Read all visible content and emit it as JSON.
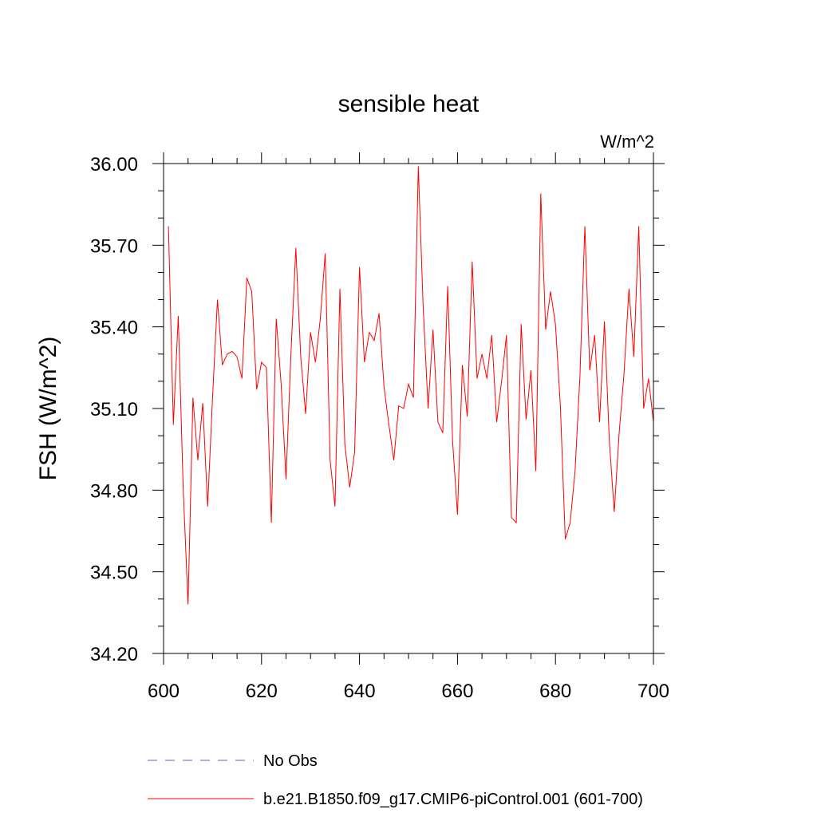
{
  "chart_data": {
    "type": "line",
    "title": "sensible heat",
    "units_label": "W/m^2",
    "ylabel": "FSH  (W/m^2)",
    "xlabel": "",
    "xlim": [
      600,
      700
    ],
    "ylim": [
      34.2,
      36.0
    ],
    "x_ticks": [
      600,
      620,
      640,
      660,
      680,
      700
    ],
    "x_tick_labels": [
      "600",
      "620",
      "640",
      "660",
      "680",
      "700"
    ],
    "y_ticks": [
      34.2,
      34.5,
      34.8,
      35.1,
      35.4,
      35.7,
      36.0
    ],
    "y_tick_labels": [
      "34.20",
      "34.50",
      "34.80",
      "35.10",
      "35.40",
      "35.70",
      "36.00"
    ],
    "grid": false,
    "legend": [
      {
        "name": "No Obs",
        "color": "#6a5acd",
        "style": "dashed"
      },
      {
        "name": "b.e21.B1850.f09_g17.CMIP6-piControl.001 (601-700)",
        "color": "#ff0000",
        "style": "solid"
      }
    ],
    "series": [
      {
        "name": "b.e21.B1850.f09_g17.CMIP6-piControl.001 (601-700)",
        "color": "#ff0000",
        "x": [
          601,
          602,
          603,
          604,
          605,
          606,
          607,
          608,
          609,
          610,
          611,
          612,
          613,
          614,
          615,
          616,
          617,
          618,
          619,
          620,
          621,
          622,
          623,
          624,
          625,
          626,
          627,
          628,
          629,
          630,
          631,
          632,
          633,
          634,
          635,
          636,
          637,
          638,
          639,
          640,
          641,
          642,
          643,
          644,
          645,
          646,
          647,
          648,
          649,
          650,
          651,
          652,
          653,
          654,
          655,
          656,
          657,
          658,
          659,
          660,
          661,
          662,
          663,
          664,
          665,
          666,
          667,
          668,
          669,
          670,
          671,
          672,
          673,
          674,
          675,
          676,
          677,
          678,
          679,
          680,
          681,
          682,
          683,
          684,
          685,
          686,
          687,
          688,
          689,
          690,
          691,
          692,
          693,
          694,
          695,
          696,
          697,
          698,
          699,
          700
        ],
        "y": [
          35.77,
          35.04,
          35.44,
          34.81,
          34.38,
          35.14,
          34.91,
          35.12,
          34.74,
          35.14,
          35.5,
          35.26,
          35.3,
          35.31,
          35.29,
          35.21,
          35.58,
          35.53,
          35.17,
          35.27,
          35.25,
          34.68,
          35.43,
          35.19,
          34.84,
          35.3,
          35.69,
          35.29,
          35.08,
          35.38,
          35.27,
          35.43,
          35.67,
          34.91,
          34.74,
          35.54,
          34.97,
          34.81,
          34.94,
          35.62,
          35.27,
          35.38,
          35.35,
          35.45,
          35.18,
          35.04,
          34.91,
          35.11,
          35.1,
          35.19,
          35.14,
          35.99,
          35.47,
          35.1,
          35.39,
          35.05,
          35.01,
          35.55,
          34.98,
          34.71,
          35.26,
          35.07,
          35.64,
          35.21,
          35.3,
          35.21,
          35.37,
          35.05,
          35.2,
          35.37,
          34.7,
          34.68,
          35.41,
          35.06,
          35.24,
          34.87,
          35.89,
          35.39,
          35.53,
          35.41,
          35.11,
          34.62,
          34.68,
          34.87,
          35.22,
          35.77,
          35.24,
          35.37,
          35.05,
          35.42,
          34.98,
          34.72,
          35.01,
          35.23,
          35.54,
          35.29,
          35.77,
          35.1,
          35.21,
          35.05
        ]
      }
    ]
  }
}
